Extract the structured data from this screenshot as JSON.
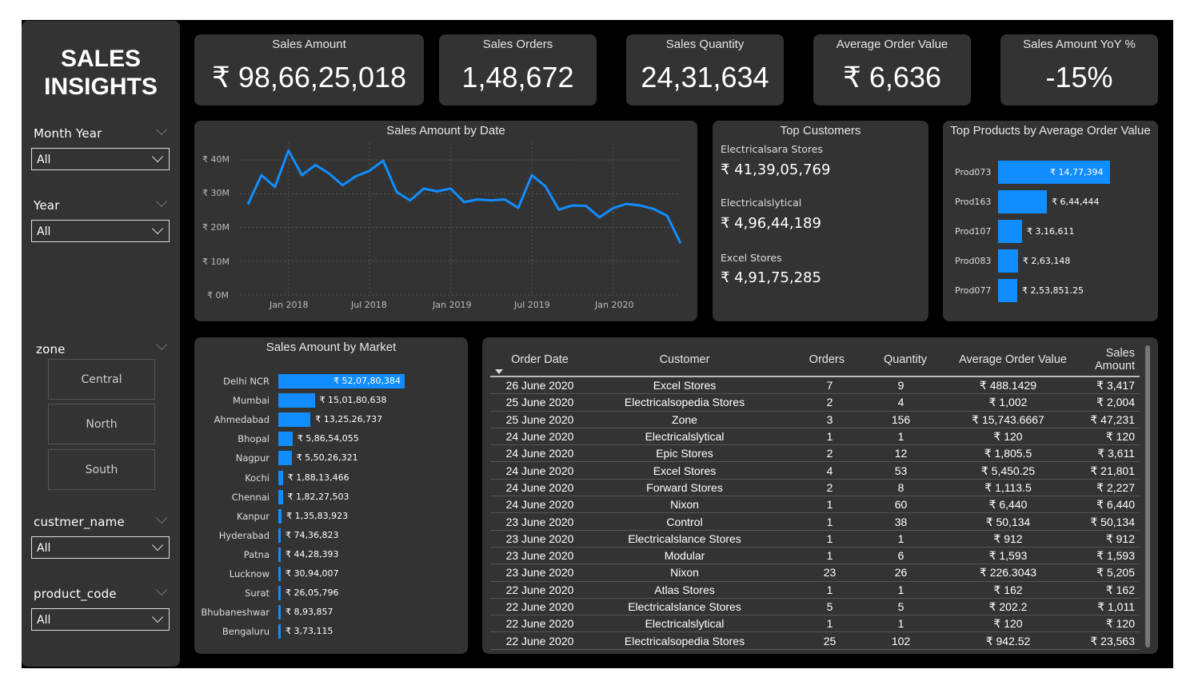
{
  "sidebar": {
    "title_line1": "SALES",
    "title_line2": "INSIGHTS",
    "filters": {
      "month_year": {
        "label": "Month Year",
        "value": "All"
      },
      "year": {
        "label": "Year",
        "value": "All"
      },
      "zone": {
        "label": "zone",
        "options": [
          "Central",
          "North",
          "South"
        ]
      },
      "customer": {
        "label": "custmer_name",
        "value": "All"
      },
      "product": {
        "label": "product_code",
        "value": "All"
      }
    }
  },
  "kpis": [
    {
      "label": "Sales Amount",
      "value": "₹ 98,66,25,018"
    },
    {
      "label": "Sales Orders",
      "value": "1,48,672"
    },
    {
      "label": "Sales Quantity",
      "value": "24,31,634"
    },
    {
      "label": "Average Order Value",
      "value": "₹ 6,636"
    },
    {
      "label": "Sales Amount YoY %",
      "value": "-15%"
    }
  ],
  "line_chart": {
    "title": "Sales Amount by Date",
    "y_ticks": [
      "₹ 40M",
      "₹ 30M",
      "₹ 20M",
      "₹ 10M",
      "₹ 0M"
    ],
    "x_ticks": [
      "Jan 2018",
      "Jul 2018",
      "Jan 2019",
      "Jul 2019",
      "Jan 2020"
    ],
    "color": "#118dff"
  },
  "top_customers": {
    "title": "Top Customers",
    "items": [
      {
        "name": "Electricalsara Stores",
        "value": "₹ 41,39,05,769"
      },
      {
        "name": "Electricalslytical",
        "value": "₹ 4,96,44,189"
      },
      {
        "name": "Excel Stores",
        "value": "₹ 4,91,75,285"
      }
    ]
  },
  "top_products": {
    "title": "Top Products by Average Order Value",
    "labels": [
      "Prod073",
      "Prod163",
      "Prod107",
      "Prod083",
      "Prod077"
    ],
    "value_labels": [
      "₹ 14,77,394",
      "₹ 6,44,444",
      "₹ 3,16,611",
      "₹ 2,63,148",
      "₹ 2,53,851.25"
    ]
  },
  "market_chart": {
    "title": "Sales Amount by Market",
    "labels": [
      "Delhi NCR",
      "Mumbai",
      "Ahmedabad",
      "Bhopal",
      "Nagpur",
      "Kochi",
      "Chennai",
      "Kanpur",
      "Hyderabad",
      "Patna",
      "Lucknow",
      "Surat",
      "Bhubaneshwar",
      "Bengaluru"
    ],
    "value_labels": [
      "₹ 52,07,80,384",
      "₹ 15,01,80,638",
      "₹ 13,25,26,737",
      "₹ 5,86,54,055",
      "₹ 5,50,26,321",
      "₹ 1,88,13,466",
      "₹ 1,82,27,503",
      "₹ 1,35,83,923",
      "₹ 74,36,823",
      "₹ 44,28,393",
      "₹ 30,94,007",
      "₹ 26,05,796",
      "₹ 8,93,857",
      "₹ 3,73,115"
    ]
  },
  "chart_data": [
    {
      "type": "line",
      "title": "Sales Amount by Date",
      "x": [
        "2017-10",
        "2017-11",
        "2017-12",
        "2018-01",
        "2018-02",
        "2018-03",
        "2018-04",
        "2018-05",
        "2018-06",
        "2018-07",
        "2018-08",
        "2018-09",
        "2018-10",
        "2018-11",
        "2018-12",
        "2019-01",
        "2019-02",
        "2019-03",
        "2019-04",
        "2019-05",
        "2019-06",
        "2019-07",
        "2019-08",
        "2019-09",
        "2019-10",
        "2019-11",
        "2019-12",
        "2020-01",
        "2020-02",
        "2020-03",
        "2020-04",
        "2020-05",
        "2020-06"
      ],
      "values": [
        26.8,
        35.5,
        32,
        42.8,
        35.5,
        38.5,
        36,
        32.5,
        35.2,
        36.8,
        39.8,
        30.5,
        28,
        31.5,
        30.7,
        31.5,
        27.5,
        28.3,
        28,
        28.3,
        25.8,
        35.5,
        32.2,
        25.3,
        26.5,
        26.4,
        23,
        25.7,
        27,
        26.5,
        25.5,
        23.5,
        15.3
      ],
      "ylim": [
        0,
        45
      ],
      "y_unit": "M"
    },
    {
      "type": "bar",
      "title": "Top Products by Average Order Value",
      "categories": [
        "Prod073",
        "Prod163",
        "Prod107",
        "Prod083",
        "Prod077"
      ],
      "values": [
        1477394,
        644444,
        316611,
        263148,
        253851.25
      ]
    },
    {
      "type": "bar",
      "title": "Sales Amount by Market",
      "categories": [
        "Delhi NCR",
        "Mumbai",
        "Ahmedabad",
        "Bhopal",
        "Nagpur",
        "Kochi",
        "Chennai",
        "Kanpur",
        "Hyderabad",
        "Patna",
        "Lucknow",
        "Surat",
        "Bhubaneshwar",
        "Bengaluru"
      ],
      "values": [
        520780384,
        150180638,
        132526737,
        58654055,
        55026321,
        18813466,
        18227503,
        13583923,
        7436823,
        4428393,
        3094007,
        2605796,
        893857,
        373115
      ]
    }
  ],
  "table": {
    "headers": [
      "Order Date",
      "Customer",
      "Orders",
      "Quantity",
      "Average Order Value",
      "Sales Amount"
    ],
    "rows": [
      [
        "26 June 2020",
        "Excel Stores",
        "7",
        "9",
        "₹ 488.1429",
        "₹ 3,417"
      ],
      [
        "25 June 2020",
        "Electricalsopedia Stores",
        "2",
        "4",
        "₹ 1,002",
        "₹ 2,004"
      ],
      [
        "25 June 2020",
        "Zone",
        "3",
        "156",
        "₹ 15,743.6667",
        "₹ 47,231"
      ],
      [
        "24 June 2020",
        "Electricalslytical",
        "1",
        "1",
        "₹ 120",
        "₹ 120"
      ],
      [
        "24 June 2020",
        "Epic Stores",
        "2",
        "12",
        "₹ 1,805.5",
        "₹ 3,611"
      ],
      [
        "24 June 2020",
        "Excel Stores",
        "4",
        "53",
        "₹ 5,450.25",
        "₹ 21,801"
      ],
      [
        "24 June 2020",
        "Forward Stores",
        "2",
        "8",
        "₹ 1,113.5",
        "₹ 2,227"
      ],
      [
        "24 June 2020",
        "Nixon",
        "1",
        "60",
        "₹ 6,440",
        "₹ 6,440"
      ],
      [
        "23 June 2020",
        "Control",
        "1",
        "38",
        "₹ 50,134",
        "₹ 50,134"
      ],
      [
        "23 June 2020",
        "Electricalslance Stores",
        "1",
        "1",
        "₹ 912",
        "₹ 912"
      ],
      [
        "23 June 2020",
        "Modular",
        "1",
        "6",
        "₹ 1,593",
        "₹ 1,593"
      ],
      [
        "23 June 2020",
        "Nixon",
        "23",
        "26",
        "₹ 226.3043",
        "₹ 5,205"
      ],
      [
        "22 June 2020",
        "Atlas Stores",
        "1",
        "1",
        "₹ 162",
        "₹ 162"
      ],
      [
        "22 June 2020",
        "Electricalslance Stores",
        "5",
        "5",
        "₹ 202.2",
        "₹ 1,011"
      ],
      [
        "22 June 2020",
        "Electricalslytical",
        "1",
        "1",
        "₹ 120",
        "₹ 120"
      ],
      [
        "22 June 2020",
        "Electricalsopedia Stores",
        "25",
        "102",
        "₹ 942.52",
        "₹ 23,563"
      ]
    ]
  },
  "colors": {
    "accent": "#118dff",
    "panel": "#333333",
    "background": "#000000"
  }
}
